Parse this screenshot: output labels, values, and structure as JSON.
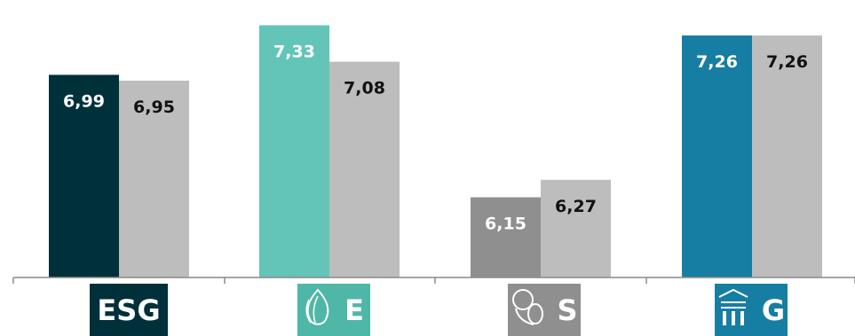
{
  "chart_data": {
    "type": "bar",
    "categories": [
      "ESG",
      "E",
      "S",
      "G"
    ],
    "series": [
      {
        "values": [
          6.99,
          7.33,
          6.15,
          7.26
        ],
        "labels": [
          "6,99",
          "7,33",
          "6,15",
          "7,26"
        ],
        "colors": [
          "#00303a",
          "#62c5b8",
          "#8f8f8f",
          "#177ea3"
        ]
      },
      {
        "values": [
          6.95,
          7.08,
          6.27,
          7.26
        ],
        "labels": [
          "6,95",
          "7,08",
          "6,27",
          "7,26"
        ],
        "colors": [
          "#bdbdbd",
          "#bdbdbd",
          "#bdbdbd",
          "#bdbdbd"
        ]
      }
    ],
    "ylim": [
      5.6,
      7.4
    ],
    "grid": false,
    "title": "",
    "xlabel": "",
    "ylabel": ""
  },
  "badges": [
    {
      "label": "ESG",
      "color": "#00303a",
      "icon": ""
    },
    {
      "label": "E",
      "color": "#4fb7a7",
      "icon": "leaf-icon"
    },
    {
      "label": "S",
      "color": "#8f8f8f",
      "icon": "people-icon"
    },
    {
      "label": "G",
      "color": "#177ea3",
      "icon": "building-icon"
    }
  ]
}
